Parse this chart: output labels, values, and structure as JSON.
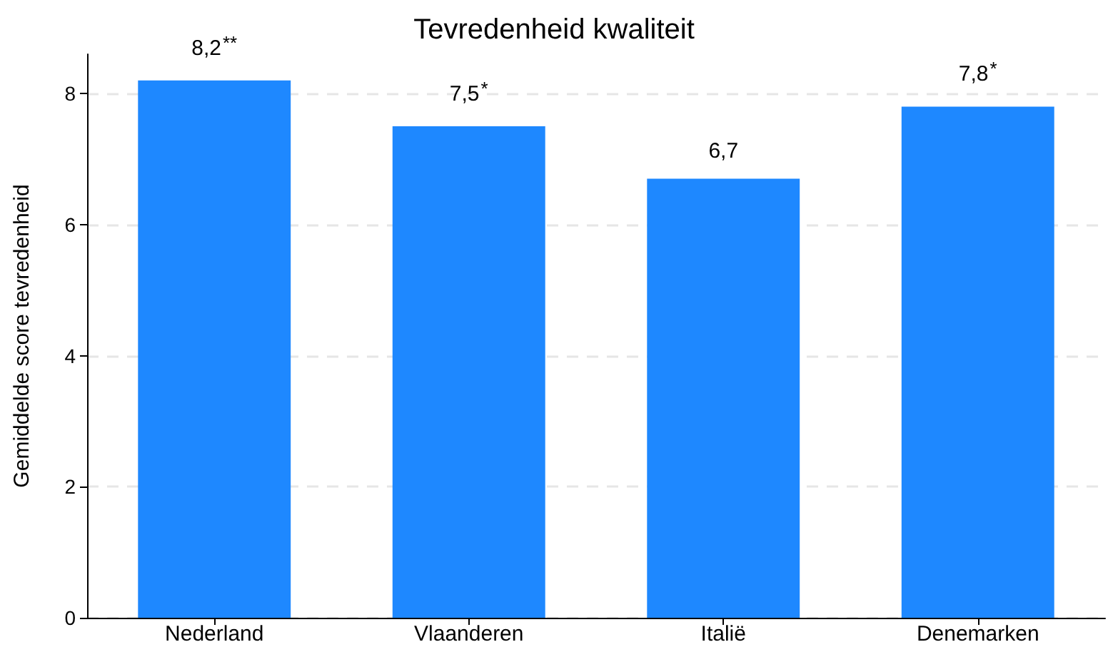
{
  "chart_data": {
    "type": "bar",
    "title": "Tevredenheid kwaliteit",
    "ylabel": "Gemiddelde score tevredenheid",
    "categories": [
      "Nederland",
      "Vlaanderen",
      "Italië",
      "Denemarken"
    ],
    "values": [
      8.2,
      7.5,
      6.7,
      7.8
    ],
    "value_labels": [
      "8,2$^{**}$",
      "7,5$^{*}$",
      "6,7",
      "7,8$^{*}$"
    ],
    "color": "#1e88ff",
    "ylim": [
      0,
      8.6
    ],
    "yticks": [
      0,
      2,
      4,
      6,
      8
    ],
    "grid": "y"
  }
}
